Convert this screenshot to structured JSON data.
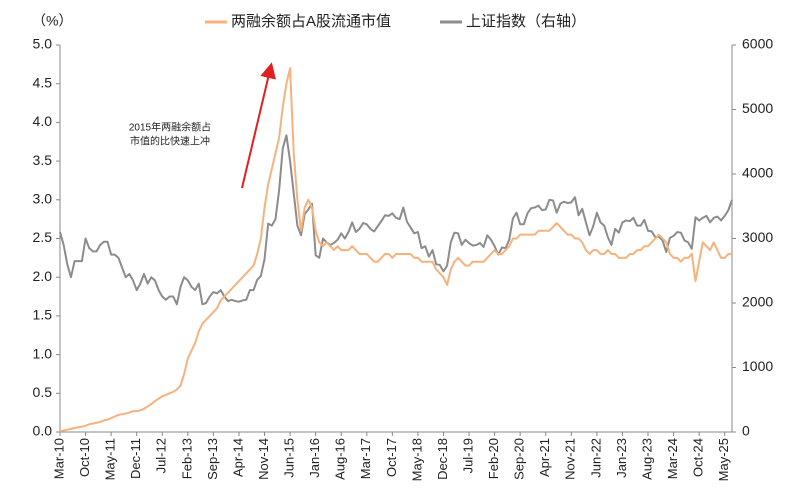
{
  "chart_data": {
    "type": "line",
    "y_label": "（%）",
    "annotation": [
      "2015年两融余额占",
      "市值的比快速上冲"
    ],
    "x": [
      "Mar-10",
      "Apr-10",
      "May-10",
      "Jun-10",
      "Jul-10",
      "Aug-10",
      "Sep-10",
      "Oct-10",
      "Nov-10",
      "Dec-10",
      "Jan-11",
      "Feb-11",
      "Mar-11",
      "Apr-11",
      "May-11",
      "Jun-11",
      "Jul-11",
      "Aug-11",
      "Sep-11",
      "Oct-11",
      "Nov-11",
      "Dec-11",
      "Jan-12",
      "Feb-12",
      "Mar-12",
      "Apr-12",
      "May-12",
      "Jun-12",
      "Jul-12",
      "Aug-12",
      "Sep-12",
      "Oct-12",
      "Nov-12",
      "Dec-12",
      "Jan-13",
      "Feb-13",
      "Mar-13",
      "Apr-13",
      "May-13",
      "Jun-13",
      "Jul-13",
      "Aug-13",
      "Sep-13",
      "Oct-13",
      "Nov-13",
      "Dec-13",
      "Jan-14",
      "Feb-14",
      "Mar-14",
      "Apr-14",
      "May-14",
      "Jun-14",
      "Jul-14",
      "Aug-14",
      "Sep-14",
      "Oct-14",
      "Nov-14",
      "Dec-14",
      "Jan-15",
      "Feb-15",
      "Mar-15",
      "Apr-15",
      "May-15",
      "Jun-15",
      "Jul-15",
      "Aug-15",
      "Sep-15",
      "Oct-15",
      "Nov-15",
      "Dec-15",
      "Jan-16",
      "Feb-16",
      "Mar-16",
      "Apr-16",
      "May-16",
      "Jun-16",
      "Jul-16",
      "Aug-16",
      "Sep-16",
      "Oct-16",
      "Nov-16",
      "Dec-16",
      "Jan-17",
      "Feb-17",
      "Mar-17",
      "Apr-17",
      "May-17",
      "Jun-17",
      "Jul-17",
      "Aug-17",
      "Sep-17",
      "Oct-17",
      "Nov-17",
      "Dec-17",
      "Jan-18",
      "Feb-18",
      "Mar-18",
      "Apr-18",
      "May-18",
      "Jun-18",
      "Jul-18",
      "Aug-18",
      "Sep-18",
      "Oct-18",
      "Nov-18",
      "Dec-18",
      "Jan-19",
      "Feb-19",
      "Mar-19",
      "Apr-19",
      "May-19",
      "Jun-19",
      "Jul-19",
      "Aug-19",
      "Sep-19",
      "Oct-19",
      "Nov-19",
      "Dec-19",
      "Jan-20",
      "Feb-20",
      "Mar-20",
      "Apr-20",
      "May-20",
      "Jun-20",
      "Jul-20",
      "Aug-20",
      "Sep-20",
      "Oct-20",
      "Nov-20",
      "Dec-20",
      "Jan-21",
      "Feb-21",
      "Mar-21",
      "Apr-21",
      "May-21",
      "Jun-21",
      "Jul-21",
      "Aug-21",
      "Sep-21",
      "Oct-21",
      "Nov-21",
      "Dec-21",
      "Jan-22",
      "Feb-22",
      "Mar-22",
      "Apr-22",
      "May-22",
      "Jun-22",
      "Jul-22",
      "Aug-22",
      "Sep-22",
      "Oct-22",
      "Nov-22",
      "Dec-22",
      "Jan-23",
      "Feb-23",
      "Mar-23",
      "Apr-23",
      "May-23",
      "Jun-23",
      "Jul-23",
      "Aug-23",
      "Sep-23",
      "Oct-23",
      "Nov-23",
      "Dec-23",
      "Jan-24",
      "Feb-24",
      "Mar-24",
      "Apr-24",
      "May-24",
      "Jun-24",
      "Jul-24",
      "Aug-24",
      "Sep-24",
      "Oct-24",
      "Nov-24",
      "Dec-24",
      "Jan-25",
      "Feb-25",
      "Mar-25",
      "Apr-25",
      "May-25",
      "Jun-25",
      "Jul-25"
    ],
    "xticks": [
      "Mar-10",
      "Oct-10",
      "May-11",
      "Dec-11",
      "Jul-12",
      "Feb-13",
      "Sep-13",
      "Apr-14",
      "Nov-14",
      "Jun-15",
      "Jan-16",
      "Aug-16",
      "Mar-17",
      "Oct-17",
      "May-18",
      "Dec-18",
      "Jul-19",
      "Feb-20",
      "Sep-20",
      "Apr-21",
      "Nov-21",
      "Jun-22",
      "Jan-23",
      "Aug-23",
      "Mar-24",
      "Oct-24",
      "May-25"
    ],
    "series": [
      {
        "name": "两融余额占A股流通市值",
        "color": "#f7b27c",
        "values": [
          0.01,
          0.02,
          0.03,
          0.04,
          0.05,
          0.06,
          0.07,
          0.08,
          0.1,
          0.11,
          0.12,
          0.13,
          0.15,
          0.16,
          0.18,
          0.2,
          0.22,
          0.23,
          0.24,
          0.25,
          0.27,
          0.27,
          0.28,
          0.3,
          0.33,
          0.36,
          0.4,
          0.43,
          0.46,
          0.48,
          0.5,
          0.52,
          0.55,
          0.6,
          0.75,
          0.95,
          1.05,
          1.15,
          1.3,
          1.4,
          1.45,
          1.5,
          1.55,
          1.6,
          1.7,
          1.75,
          1.8,
          1.85,
          1.9,
          1.95,
          2.0,
          2.05,
          2.1,
          2.15,
          2.3,
          2.5,
          2.9,
          3.2,
          3.4,
          3.6,
          3.8,
          4.2,
          4.5,
          4.7,
          3.6,
          3.0,
          2.6,
          2.9,
          3.0,
          2.9,
          2.6,
          2.45,
          2.4,
          2.45,
          2.4,
          2.35,
          2.4,
          2.35,
          2.35,
          2.35,
          2.4,
          2.35,
          2.3,
          2.3,
          2.3,
          2.25,
          2.2,
          2.2,
          2.25,
          2.3,
          2.3,
          2.25,
          2.3,
          2.3,
          2.3,
          2.3,
          2.3,
          2.25,
          2.25,
          2.2,
          2.2,
          2.2,
          2.2,
          2.1,
          2.05,
          2.0,
          1.9,
          2.1,
          2.2,
          2.25,
          2.2,
          2.15,
          2.15,
          2.2,
          2.2,
          2.2,
          2.2,
          2.25,
          2.3,
          2.35,
          2.3,
          2.3,
          2.35,
          2.4,
          2.5,
          2.5,
          2.55,
          2.55,
          2.55,
          2.55,
          2.55,
          2.6,
          2.6,
          2.6,
          2.6,
          2.65,
          2.7,
          2.65,
          2.6,
          2.55,
          2.55,
          2.5,
          2.5,
          2.45,
          2.35,
          2.3,
          2.35,
          2.35,
          2.3,
          2.3,
          2.35,
          2.3,
          2.3,
          2.25,
          2.25,
          2.25,
          2.3,
          2.3,
          2.35,
          2.35,
          2.4,
          2.4,
          2.45,
          2.5,
          2.55,
          2.5,
          2.45,
          2.3,
          2.25,
          2.25,
          2.2,
          2.25,
          2.25,
          2.3,
          1.95,
          2.2,
          2.45,
          2.4,
          2.35,
          2.45,
          2.35,
          2.25,
          2.25,
          2.3,
          2.3
        ]
      },
      {
        "name": "上证指数（右轴）",
        "color": "#8c8c8c",
        "axis": "y2",
        "values": [
          3100,
          2900,
          2600,
          2400,
          2650,
          2650,
          2650,
          3000,
          2850,
          2800,
          2800,
          2900,
          2950,
          2950,
          2750,
          2750,
          2700,
          2550,
          2400,
          2450,
          2350,
          2200,
          2300,
          2450,
          2300,
          2400,
          2350,
          2200,
          2100,
          2050,
          2100,
          2100,
          1980,
          2250,
          2400,
          2350,
          2250,
          2200,
          2300,
          1980,
          2000,
          2100,
          2170,
          2150,
          2200,
          2100,
          2030,
          2050,
          2030,
          2020,
          2040,
          2050,
          2200,
          2200,
          2360,
          2420,
          2680,
          3230,
          3200,
          3300,
          3750,
          4400,
          4600,
          4200,
          3700,
          3200,
          3050,
          3380,
          3450,
          3540,
          2740,
          2700,
          3000,
          2940,
          2900,
          2930,
          2980,
          3080,
          3000,
          3100,
          3250,
          3100,
          3150,
          3240,
          3220,
          3150,
          3110,
          3190,
          3270,
          3360,
          3350,
          3390,
          3320,
          3300,
          3480,
          3260,
          3170,
          3080,
          3100,
          2850,
          2880,
          2720,
          2820,
          2600,
          2590,
          2490,
          2580,
          2940,
          3090,
          3080,
          2900,
          2980,
          2930,
          2890,
          2900,
          2930,
          2870,
          3050,
          2980,
          2880,
          2750,
          2860,
          2850,
          2980,
          3310,
          3400,
          3220,
          3220,
          3390,
          3470,
          3480,
          3510,
          3440,
          3450,
          3600,
          3590,
          3400,
          3540,
          3570,
          3550,
          3560,
          3640,
          3360,
          3460,
          3250,
          3050,
          3190,
          3400,
          3250,
          3200,
          3020,
          2900,
          3150,
          3090,
          3250,
          3280,
          3270,
          3320,
          3200,
          3200,
          3290,
          3120,
          3110,
          3020,
          3030,
          2970,
          2790,
          3010,
          3040,
          3100,
          3090,
          2970,
          2940,
          2840,
          3330,
          3280,
          3320,
          3350,
          3250,
          3320,
          3340,
          3280,
          3350,
          3440,
          3600
        ]
      }
    ],
    "ylim": [
      0,
      5
    ],
    "yticks": [
      {
        "value": 0,
        "label": "0.0"
      },
      0.5,
      {
        "value": 1,
        "label": "1.0"
      },
      1.5,
      {
        "value": 2,
        "label": "2.0"
      },
      2.5,
      {
        "value": 3,
        "label": "3.0"
      },
      3.5,
      {
        "value": 4,
        "label": "4.0"
      },
      4.5,
      {
        "value": 5,
        "label": "5.0"
      }
    ],
    "y2lim": [
      0,
      6000
    ],
    "y2ticks": [
      0,
      1000,
      2000,
      3000,
      4000,
      5000,
      6000
    ],
    "grid": false,
    "legend": "top"
  }
}
